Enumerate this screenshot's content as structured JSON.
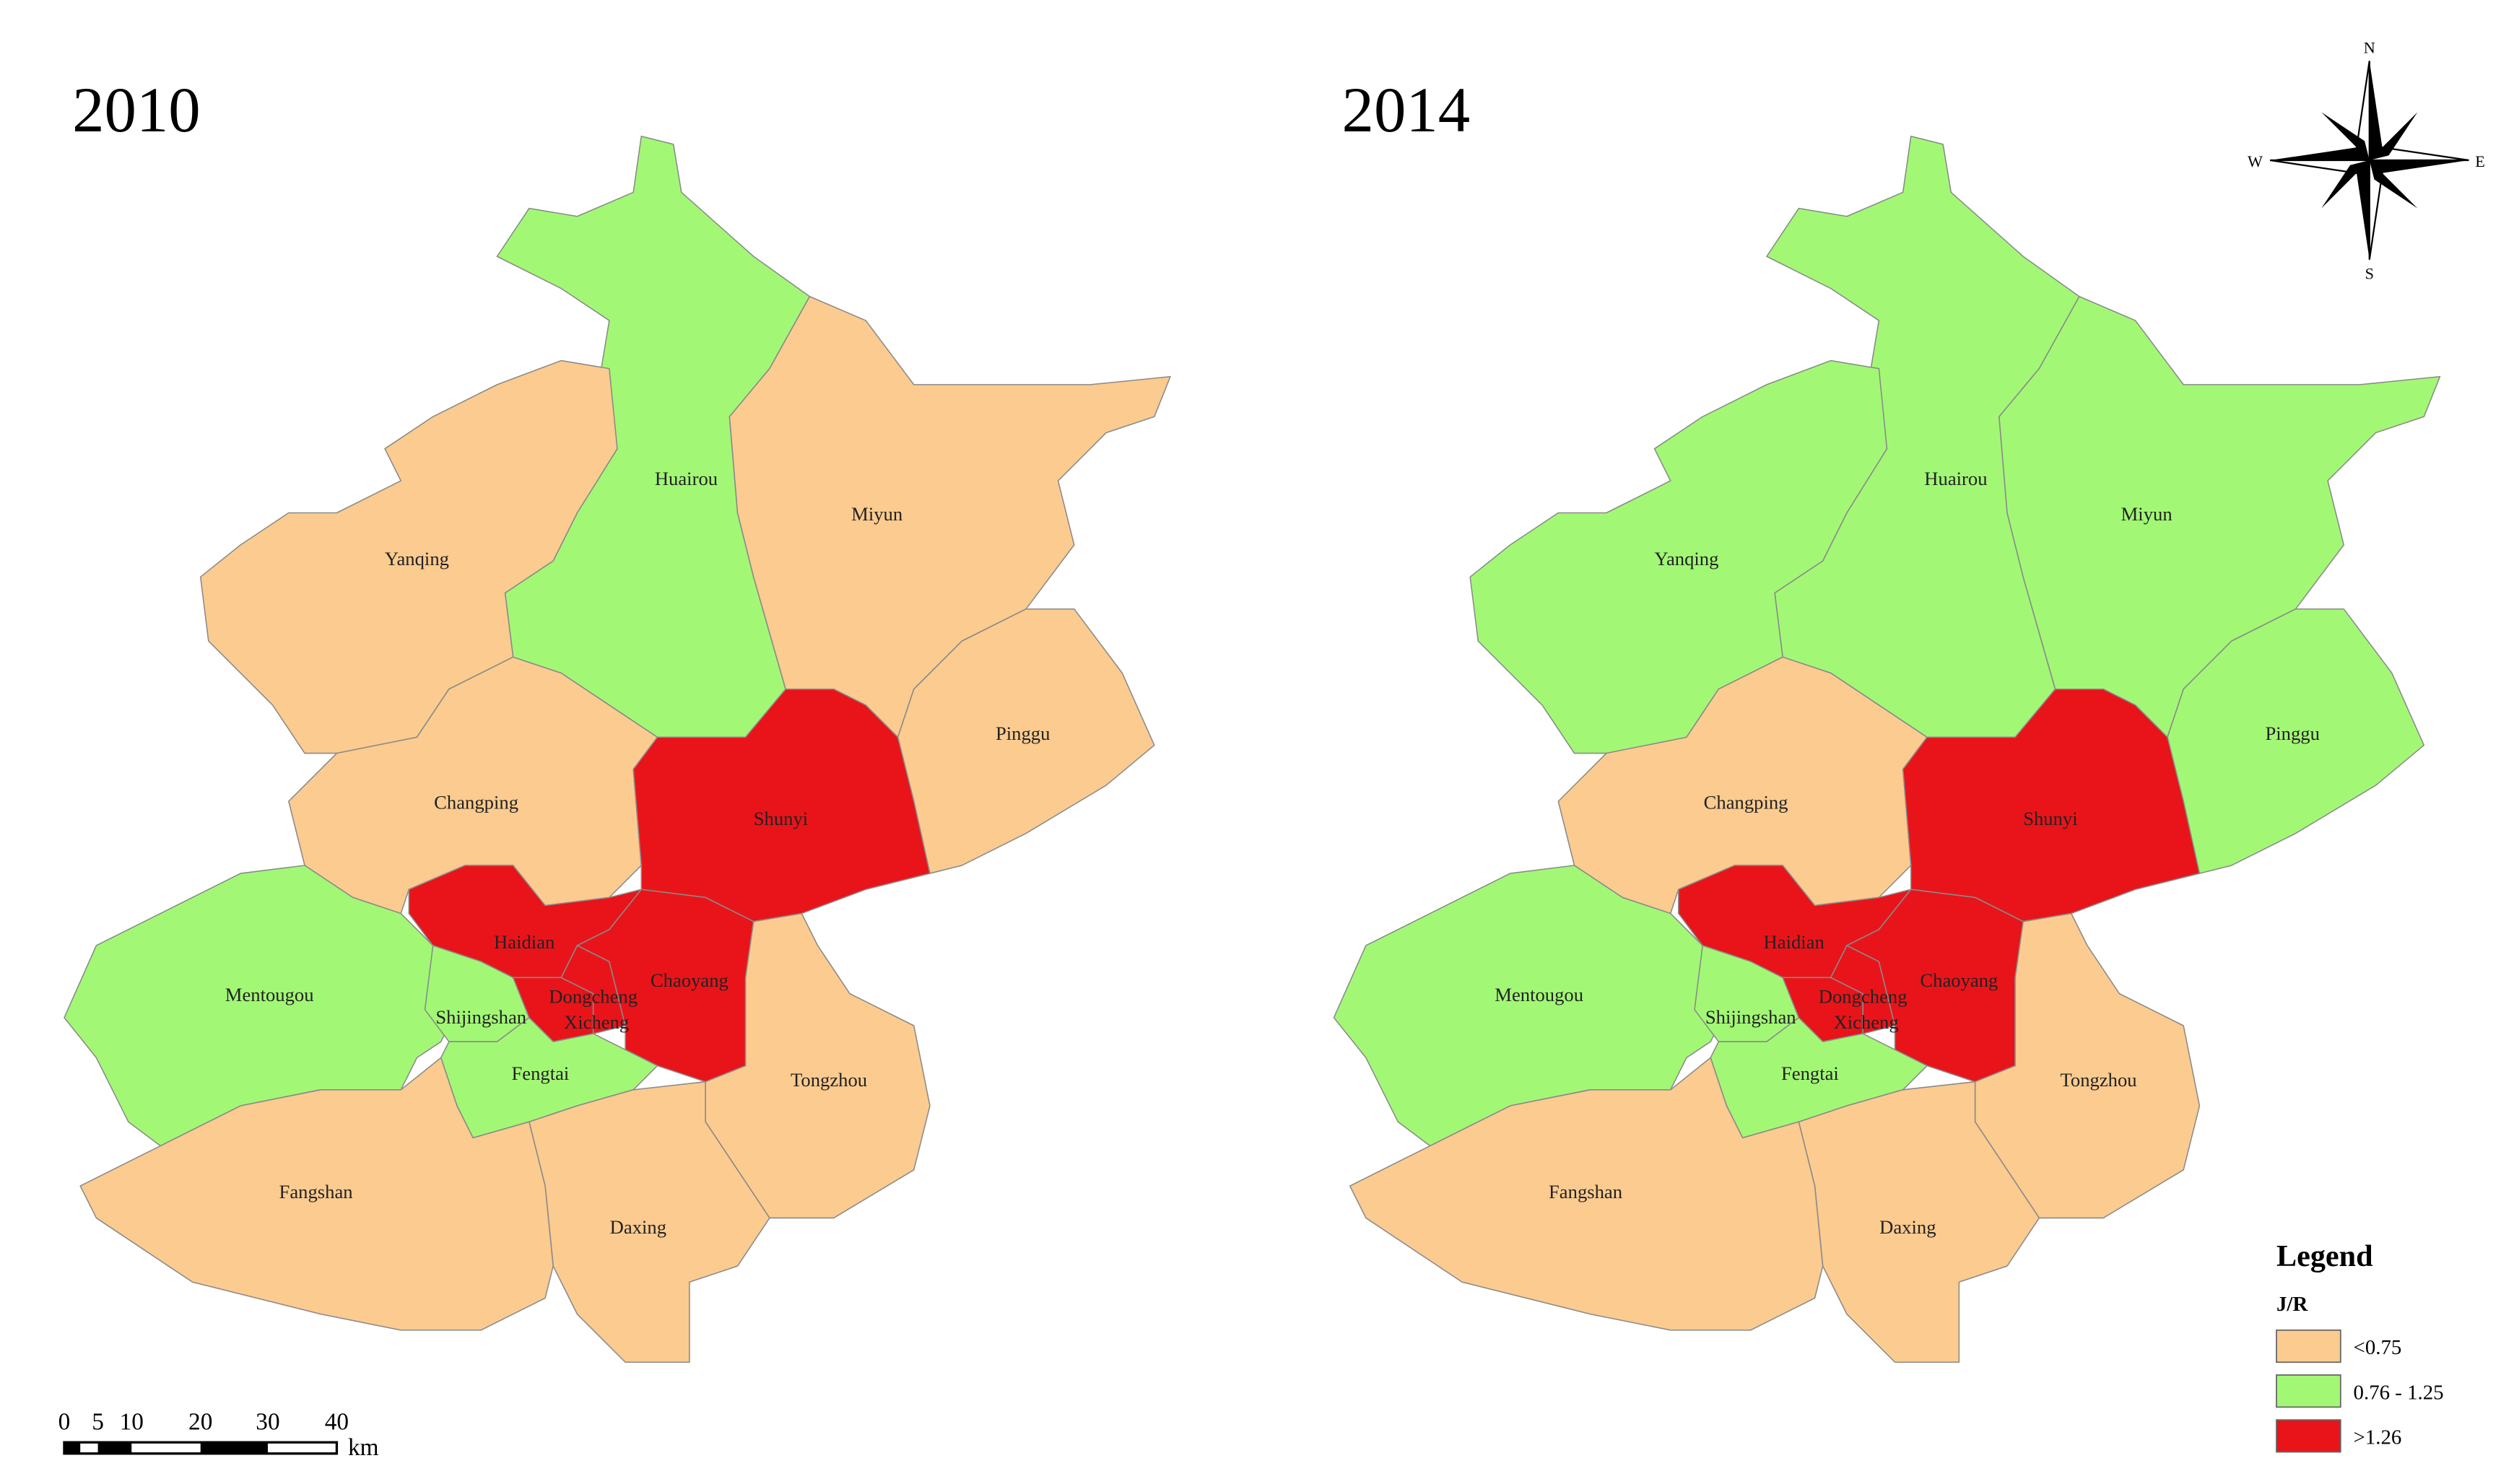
{
  "maps": [
    {
      "title": "2010",
      "districts": [
        {
          "name": "Huairou",
          "color": "#a2f875"
        },
        {
          "name": "Yanqing",
          "color": "#fbcb8f"
        },
        {
          "name": "Miyun",
          "color": "#fbcb8f"
        },
        {
          "name": "Pinggu",
          "color": "#fbcb8f"
        },
        {
          "name": "Changping",
          "color": "#fbcb8f"
        },
        {
          "name": "Shunyi",
          "color": "#e8141a"
        },
        {
          "name": "Haidian",
          "color": "#e8141a"
        },
        {
          "name": "Mentougou",
          "color": "#a2f875"
        },
        {
          "name": "Shijingshan",
          "color": "#a2f875"
        },
        {
          "name": "Xicheng",
          "color": "#e8141a"
        },
        {
          "name": "Dongcheng",
          "color": "#e8141a"
        },
        {
          "name": "Chaoyang",
          "color": "#e8141a"
        },
        {
          "name": "Fengtai",
          "color": "#a2f875"
        },
        {
          "name": "Tongzhou",
          "color": "#fbcb8f"
        },
        {
          "name": "Daxing",
          "color": "#fbcb8f"
        },
        {
          "name": "Fangshan",
          "color": "#fbcb8f"
        }
      ]
    },
    {
      "title": "2014",
      "districts": [
        {
          "name": "Huairou",
          "color": "#a2f875"
        },
        {
          "name": "Yanqing",
          "color": "#a2f875"
        },
        {
          "name": "Miyun",
          "color": "#a2f875"
        },
        {
          "name": "Pinggu",
          "color": "#a2f875"
        },
        {
          "name": "Changping",
          "color": "#fbcb8f"
        },
        {
          "name": "Shunyi",
          "color": "#e8141a"
        },
        {
          "name": "Haidian",
          "color": "#e8141a"
        },
        {
          "name": "Mentougou",
          "color": "#a2f875"
        },
        {
          "name": "Shijingshan",
          "color": "#a2f875"
        },
        {
          "name": "Xicheng",
          "color": "#e8141a"
        },
        {
          "name": "Dongcheng",
          "color": "#e8141a"
        },
        {
          "name": "Chaoyang",
          "color": "#e8141a"
        },
        {
          "name": "Fengtai",
          "color": "#a2f875"
        },
        {
          "name": "Tongzhou",
          "color": "#fbcb8f"
        },
        {
          "name": "Daxing",
          "color": "#fbcb8f"
        },
        {
          "name": "Fangshan",
          "color": "#fbcb8f"
        }
      ]
    }
  ],
  "legend": {
    "title": "Legend",
    "field": "J/R",
    "items": [
      {
        "label": "<0.75",
        "color": "#fbcb8f"
      },
      {
        "label": "0.76 - 1.25",
        "color": "#a2f875"
      },
      {
        "label": ">1.26",
        "color": "#e8141a"
      }
    ]
  },
  "scale_bar": {
    "labels": [
      "0",
      "5",
      "10",
      "20",
      "30",
      "40"
    ],
    "unit": "km"
  },
  "compass": {
    "n": "N",
    "e": "E",
    "s": "S",
    "w": "W"
  }
}
